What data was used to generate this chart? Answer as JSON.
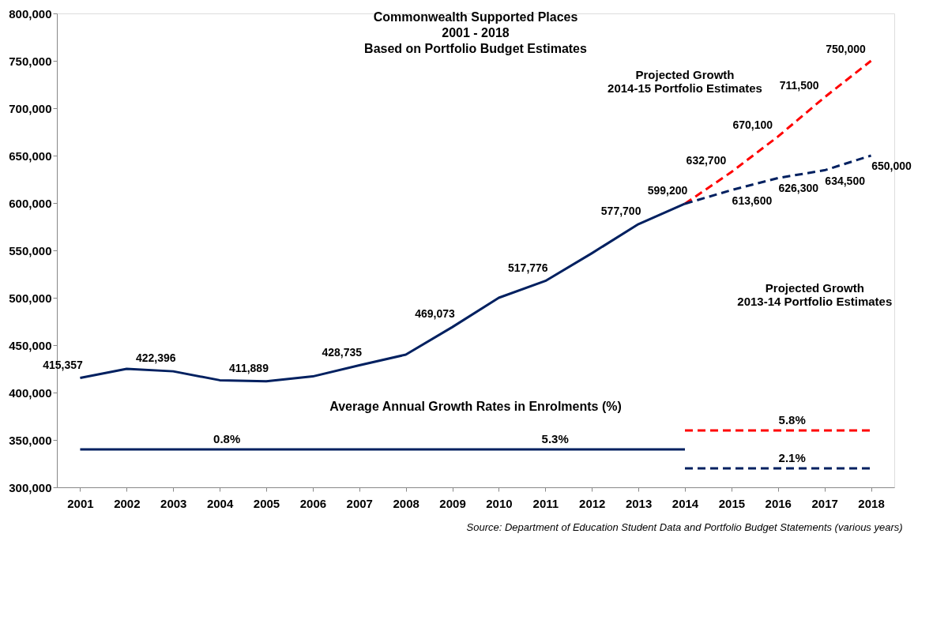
{
  "chart_data": {
    "type": "line",
    "title": "Commonwealth Supported Places\n2001 - 2018\nBased on Portfolio Budget Estimates",
    "categories": [
      "2001",
      "2002",
      "2003",
      "2004",
      "2005",
      "2006",
      "2007",
      "2008",
      "2009",
      "2010",
      "2011",
      "2012",
      "2013",
      "2014",
      "2015",
      "2016",
      "2017",
      "2018"
    ],
    "ylim": [
      300000,
      800000
    ],
    "yticks": [
      {
        "value": 300000,
        "label": "300,000"
      },
      {
        "value": 350000,
        "label": "350,000"
      },
      {
        "value": 400000,
        "label": "400,000"
      },
      {
        "value": 450000,
        "label": "450,000"
      },
      {
        "value": 500000,
        "label": "500,000"
      },
      {
        "value": 550000,
        "label": "550,000"
      },
      {
        "value": 600000,
        "label": "600,000"
      },
      {
        "value": 650000,
        "label": "650,000"
      },
      {
        "value": 700000,
        "label": "700,000"
      },
      {
        "value": 750000,
        "label": "750,000"
      },
      {
        "value": 800000,
        "label": "800,000"
      }
    ],
    "grid": false,
    "marker": "none",
    "series": [
      {
        "color": "#002060",
        "line_style": "solid",
        "values": [
          415357,
          425000,
          422396,
          413000,
          411889,
          417000,
          428735,
          440000,
          469073,
          500000,
          517776,
          547000,
          577700,
          599200,
          null,
          null,
          null,
          null
        ],
        "value_labels": [
          "415,357",
          null,
          "422,396",
          null,
          "411,889",
          null,
          "428,735",
          null,
          "469,073",
          null,
          "517,776",
          null,
          "577,700",
          "599,200",
          null,
          null,
          null,
          null
        ]
      },
      {
        "color": "#ff0000",
        "line_style": "dashed",
        "values": [
          null,
          null,
          null,
          null,
          null,
          null,
          null,
          null,
          null,
          null,
          null,
          null,
          null,
          599200,
          632700,
          670100,
          711500,
          750000
        ],
        "value_labels": [
          null,
          null,
          null,
          null,
          null,
          null,
          null,
          null,
          null,
          null,
          null,
          null,
          null,
          null,
          "632,700",
          "670,100",
          "711,500",
          "750,000"
        ]
      },
      {
        "color": "#002060",
        "line_style": "dashed",
        "values": [
          null,
          null,
          null,
          null,
          null,
          null,
          null,
          null,
          null,
          null,
          null,
          null,
          null,
          599200,
          613600,
          626300,
          634500,
          650000
        ],
        "value_labels": [
          null,
          null,
          null,
          null,
          null,
          null,
          null,
          null,
          null,
          null,
          null,
          null,
          null,
          null,
          "613,600",
          "626,300",
          "634,500",
          "650,000"
        ]
      },
      {
        "color": "#002060",
        "line_style": "solid",
        "values": [
          340000,
          340000,
          340000,
          340000,
          340000,
          340000,
          340000,
          340000,
          340000,
          340000,
          340000,
          340000,
          340000,
          340000,
          null,
          null,
          null,
          null
        ]
      },
      {
        "color": "#ff0000",
        "line_style": "dashed",
        "values": [
          null,
          null,
          null,
          null,
          null,
          null,
          null,
          null,
          null,
          null,
          null,
          null,
          null,
          360000,
          360000,
          360000,
          360000,
          360000
        ]
      },
      {
        "color": "#002060",
        "line_style": "dashed",
        "values": [
          null,
          null,
          null,
          null,
          null,
          null,
          null,
          null,
          null,
          null,
          null,
          null,
          null,
          320000,
          320000,
          320000,
          320000,
          320000
        ]
      }
    ],
    "annotations": [
      "Average Annual Growth Rates in Enrolments (%)",
      "Source:  Department of Education  Student Data and Portfolio Budget Statements (various years)",
      "Projected Growth\n2014-15 Portfolio Estimates",
      "Projected Growth\n2013-14 Portfolio Estimates",
      "0.8%",
      "5.3%",
      "5.8%",
      "2.1%"
    ]
  }
}
